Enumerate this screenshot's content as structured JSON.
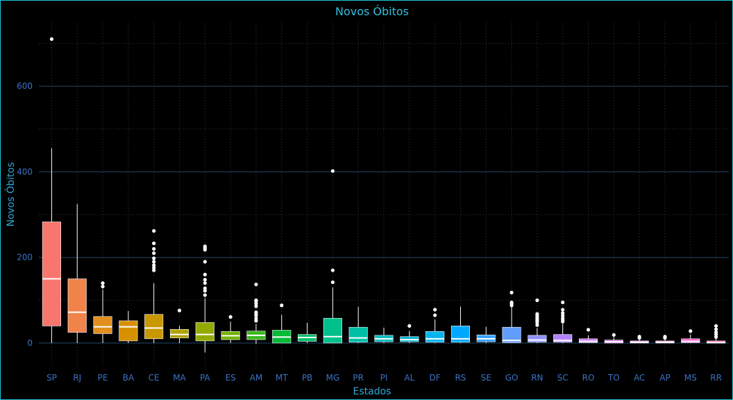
{
  "chart_data": {
    "type": "boxplot",
    "title": "Novos Óbitos",
    "xlabel": "Estados",
    "ylabel": "Novos Óbitos",
    "ylim": [
      -30,
      730
    ],
    "yticks": [
      0,
      200,
      400,
      600
    ],
    "grid": true,
    "legend": "none",
    "categories": [
      "SP",
      "RJ",
      "PE",
      "BA",
      "CE",
      "MA",
      "PA",
      "ES",
      "AM",
      "MT",
      "PB",
      "MG",
      "PR",
      "PI",
      "AL",
      "DF",
      "RS",
      "SE",
      "GO",
      "RN",
      "SC",
      "RO",
      "TO",
      "AC",
      "AP",
      "MS",
      "RR"
    ],
    "colors": [
      "#f8766d",
      "#f0834a",
      "#e18f1e",
      "#d69000",
      "#c99800",
      "#b0a200",
      "#93aa00",
      "#70b300",
      "#3bb81f",
      "#00ba38",
      "#00c06b",
      "#00c08b",
      "#00bfa6",
      "#00bbbf",
      "#00b8d6",
      "#00b4ef",
      "#00a9ff",
      "#35a2ff",
      "#619cff",
      "#8f91ff",
      "#b383ff",
      "#cf78ff",
      "#e26ef7",
      "#f066e9",
      "#f865d6",
      "#fe61cf",
      "#ff63b6"
    ],
    "boxes": [
      {
        "q1": 40,
        "median": 150,
        "q3": 283,
        "whisker_low": 0,
        "whisker_high": 455,
        "outliers": [
          710
        ]
      },
      {
        "q1": 25,
        "median": 72,
        "q3": 150,
        "whisker_low": 0,
        "whisker_high": 325,
        "outliers": []
      },
      {
        "q1": 22,
        "median": 38,
        "q3": 62,
        "whisker_low": 0,
        "whisker_high": 125,
        "outliers": [
          132,
          140
        ]
      },
      {
        "q1": 5,
        "median": 38,
        "q3": 52,
        "whisker_low": 0,
        "whisker_high": 75,
        "outliers": []
      },
      {
        "q1": 10,
        "median": 35,
        "q3": 67,
        "whisker_low": 0,
        "whisker_high": 140,
        "outliers": [
          170,
          176,
          182,
          190,
          198,
          210,
          220,
          233,
          262
        ]
      },
      {
        "q1": 12,
        "median": 20,
        "q3": 32,
        "whisker_low": 0,
        "whisker_high": 40,
        "outliers": [
          76
        ]
      },
      {
        "q1": 5,
        "median": 20,
        "q3": 48,
        "whisker_low": -22,
        "whisker_high": 105,
        "outliers": [
          112,
          122,
          128,
          140,
          148,
          160,
          190,
          218,
          222,
          226
        ]
      },
      {
        "q1": 8,
        "median": 17,
        "q3": 27,
        "whisker_low": 0,
        "whisker_high": 50,
        "outliers": [
          61
        ]
      },
      {
        "q1": 8,
        "median": 18,
        "q3": 28,
        "whisker_low": -2,
        "whisker_high": 45,
        "outliers": [
          52,
          57,
          64,
          68,
          72,
          86,
          92,
          98,
          100,
          137
        ]
      },
      {
        "q1": 0,
        "median": 14,
        "q3": 30,
        "whisker_low": 0,
        "whisker_high": 66,
        "outliers": [
          88
        ]
      },
      {
        "q1": 4,
        "median": 13,
        "q3": 20,
        "whisker_low": 0,
        "whisker_high": 47,
        "outliers": []
      },
      {
        "q1": 0,
        "median": 15,
        "q3": 58,
        "whisker_low": 0,
        "whisker_high": 130,
        "outliers": [
          142,
          170,
          402
        ]
      },
      {
        "q1": 2,
        "median": 12,
        "q3": 37,
        "whisker_low": 0,
        "whisker_high": 85,
        "outliers": []
      },
      {
        "q1": 3,
        "median": 10,
        "q3": 18,
        "whisker_low": 0,
        "whisker_high": 36,
        "outliers": []
      },
      {
        "q1": 3,
        "median": 8,
        "q3": 15,
        "whisker_low": 0,
        "whisker_high": 28,
        "outliers": [
          40
        ]
      },
      {
        "q1": 2,
        "median": 10,
        "q3": 27,
        "whisker_low": 0,
        "whisker_high": 55,
        "outliers": [
          65,
          78
        ]
      },
      {
        "q1": 2,
        "median": 10,
        "q3": 40,
        "whisker_low": 0,
        "whisker_high": 85,
        "outliers": []
      },
      {
        "q1": 3,
        "median": 10,
        "q3": 19,
        "whisker_low": 0,
        "whisker_high": 38,
        "outliers": []
      },
      {
        "q1": 1,
        "median": 6,
        "q3": 37,
        "whisker_low": 0,
        "whisker_high": 85,
        "outliers": [
          88,
          92,
          95,
          118
        ]
      },
      {
        "q1": 2,
        "median": 7,
        "q3": 18,
        "whisker_low": 0,
        "whisker_high": 35,
        "outliers": [
          42,
          48,
          52,
          56,
          60,
          64,
          68,
          100
        ]
      },
      {
        "q1": 2,
        "median": 6,
        "q3": 20,
        "whisker_low": 0,
        "whisker_high": 45,
        "outliers": [
          50,
          54,
          58,
          64,
          70,
          78,
          95
        ]
      },
      {
        "q1": 1,
        "median": 4,
        "q3": 10,
        "whisker_low": 0,
        "whisker_high": 18,
        "outliers": [
          31
        ]
      },
      {
        "q1": 0,
        "median": 3,
        "q3": 7,
        "whisker_low": 0,
        "whisker_high": 14,
        "outliers": [
          19
        ]
      },
      {
        "q1": 0,
        "median": 2,
        "q3": 5,
        "whisker_low": 0,
        "whisker_high": 9,
        "outliers": [
          12,
          15
        ]
      },
      {
        "q1": 0,
        "median": 2,
        "q3": 5,
        "whisker_low": 0,
        "whisker_high": 9,
        "outliers": [
          12,
          15
        ]
      },
      {
        "q1": 1,
        "median": 4,
        "q3": 10,
        "whisker_low": 0,
        "whisker_high": 20,
        "outliers": [
          28
        ]
      },
      {
        "q1": 0,
        "median": 1,
        "q3": 5,
        "whisker_low": 0,
        "whisker_high": 10,
        "outliers": [
          14,
          20,
          25,
          32,
          40
        ]
      }
    ]
  }
}
